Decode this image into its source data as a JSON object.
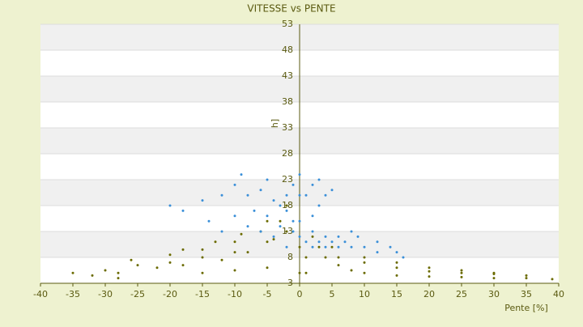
{
  "chart_data": {
    "type": "scatter",
    "title": "VITESSE vs PENTE",
    "y_label": "[km/h]",
    "x_label": "Pente [%]",
    "xlim": [
      -40,
      40
    ],
    "xticks": [
      -40,
      -35,
      -30,
      -25,
      -20,
      -15,
      -10,
      -5,
      0,
      5,
      10,
      15,
      20,
      25,
      30,
      35,
      40
    ],
    "ylim": [
      3,
      53
    ],
    "yticks": [
      3,
      8,
      13,
      18,
      23,
      28,
      33,
      38,
      43,
      48,
      53
    ],
    "grid": true,
    "series": [
      {
        "color": "#6b6b00",
        "x": [
          -35,
          -30,
          -25,
          -20,
          -15,
          -10,
          -5,
          -2,
          -32,
          -28,
          -22,
          -18,
          -12,
          -8,
          -4,
          -26,
          -20,
          -15,
          -10,
          -6,
          -3,
          -18,
          -13,
          -9,
          -5,
          -2,
          -15,
          -10,
          -5,
          -28,
          2,
          4,
          6,
          8,
          10,
          15,
          20,
          25,
          30,
          35,
          39,
          3,
          6,
          10,
          15,
          20,
          25,
          30,
          35,
          5,
          10,
          15,
          20,
          25,
          30,
          1,
          1,
          0,
          0
        ],
        "values": [
          5,
          5.5,
          6.5,
          7,
          8,
          9,
          11,
          13,
          4.5,
          5,
          6,
          6.5,
          7.5,
          9,
          11.5,
          7.5,
          8.5,
          9.5,
          11,
          13,
          15,
          9.5,
          11,
          12.5,
          15,
          18,
          5,
          5.5,
          6,
          4,
          12,
          8,
          6.5,
          5.5,
          5,
          4.5,
          4.3,
          4.2,
          4,
          4,
          3.8,
          10,
          8,
          7,
          6,
          5.3,
          5,
          4.8,
          4.5,
          10,
          8,
          7,
          6,
          5.5,
          5,
          8,
          5,
          5,
          10
        ]
      },
      {
        "color": "#3a8fd8",
        "x": [
          -20,
          -18,
          -15,
          -12,
          -10,
          -9,
          -8,
          -6,
          -5,
          -4,
          -3,
          -2,
          -2,
          -1,
          -1,
          -5,
          -7,
          -10,
          -14,
          -12,
          -8,
          -6,
          -4,
          -3,
          -2,
          0,
          0,
          0,
          0,
          1,
          2,
          3,
          4,
          5,
          3,
          2,
          2,
          3,
          4,
          5,
          6,
          7,
          8,
          9,
          10,
          12,
          14,
          15,
          16,
          1,
          2,
          4,
          6,
          8,
          12,
          -1
        ],
        "values": [
          18,
          17,
          19,
          20,
          22,
          24,
          20,
          21,
          23,
          19,
          18,
          17,
          20,
          15,
          22,
          16,
          17,
          16,
          15,
          13,
          14,
          13,
          12,
          14,
          10,
          20,
          15,
          12,
          24,
          20,
          22,
          23,
          20,
          21,
          18,
          16,
          13,
          11,
          12,
          11,
          12,
          11,
          10,
          12,
          10,
          11,
          10,
          9,
          8,
          11,
          10,
          10,
          10,
          13,
          9,
          13
        ]
      }
    ]
  }
}
